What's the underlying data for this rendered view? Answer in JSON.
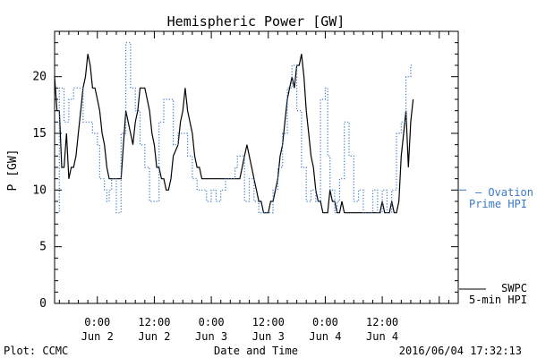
{
  "chart_data": {
    "type": "line",
    "title": "Hemispheric Power [GW]",
    "xlabel": "Date and Time",
    "ylabel": "P [GW]",
    "ylim": [
      0,
      24
    ],
    "xlim": [
      -9,
      76
    ],
    "y_ticks": [
      0,
      5,
      10,
      15,
      20
    ],
    "x_ticks": [
      {
        "x": 0,
        "line1": "0:00",
        "line2": "Jun 2"
      },
      {
        "x": 12,
        "line1": "12:00",
        "line2": "Jun 2"
      },
      {
        "x": 24,
        "line1": "0:00",
        "line2": "Jun 3"
      },
      {
        "x": 36,
        "line1": "12:00",
        "line2": "Jun 3"
      },
      {
        "x": 48,
        "line1": "0:00",
        "line2": "Jun 4"
      },
      {
        "x": 60,
        "line1": "12:00",
        "line2": "Jun 4"
      }
    ],
    "series": [
      {
        "name_line1": "SWPC",
        "name_line2": "5-min HPI",
        "color": "#000000",
        "style": "solid",
        "points": [
          [
            -9,
            20
          ],
          [
            -8.5,
            17
          ],
          [
            -8,
            17
          ],
          [
            -7.5,
            12
          ],
          [
            -7,
            12
          ],
          [
            -6.5,
            15
          ],
          [
            -6,
            11
          ],
          [
            -5.5,
            12
          ],
          [
            -5,
            12
          ],
          [
            -4.5,
            13
          ],
          [
            -4,
            15
          ],
          [
            -3.5,
            17
          ],
          [
            -3,
            19
          ],
          [
            -2.5,
            20
          ],
          [
            -2,
            22
          ],
          [
            -1.5,
            21
          ],
          [
            -1,
            19
          ],
          [
            -0.5,
            19
          ],
          [
            0,
            18
          ],
          [
            0.5,
            17
          ],
          [
            1,
            15
          ],
          [
            1.5,
            14
          ],
          [
            2,
            12
          ],
          [
            2.5,
            11
          ],
          [
            3,
            11
          ],
          [
            4,
            11
          ],
          [
            5,
            11
          ],
          [
            5.5,
            14
          ],
          [
            6,
            17
          ],
          [
            6.5,
            16
          ],
          [
            7,
            15
          ],
          [
            7.5,
            14
          ],
          [
            8,
            16
          ],
          [
            8.5,
            17
          ],
          [
            9,
            19
          ],
          [
            10,
            19
          ],
          [
            10.5,
            18
          ],
          [
            11,
            17
          ],
          [
            11.5,
            15
          ],
          [
            12,
            14
          ],
          [
            12.5,
            12
          ],
          [
            13,
            12
          ],
          [
            13.5,
            11
          ],
          [
            14,
            11
          ],
          [
            14.5,
            10
          ],
          [
            15,
            10
          ],
          [
            15.5,
            11
          ],
          [
            16,
            13
          ],
          [
            17,
            14
          ],
          [
            17.5,
            16
          ],
          [
            18,
            17
          ],
          [
            18.5,
            19
          ],
          [
            19,
            17
          ],
          [
            19.5,
            16
          ],
          [
            20,
            15
          ],
          [
            20.5,
            13
          ],
          [
            21,
            12
          ],
          [
            21.5,
            12
          ],
          [
            22,
            11
          ],
          [
            23,
            11
          ],
          [
            24,
            11
          ],
          [
            25,
            11
          ],
          [
            26,
            11
          ],
          [
            27,
            11
          ],
          [
            28,
            11
          ],
          [
            29,
            11
          ],
          [
            30,
            11
          ],
          [
            30.5,
            12
          ],
          [
            31,
            13
          ],
          [
            31.5,
            14
          ],
          [
            32,
            13
          ],
          [
            32.5,
            12
          ],
          [
            33,
            11
          ],
          [
            33.5,
            10
          ],
          [
            34,
            9
          ],
          [
            34.5,
            9
          ],
          [
            35,
            8
          ],
          [
            35.5,
            8
          ],
          [
            36,
            8
          ],
          [
            36.5,
            9
          ],
          [
            37,
            9
          ],
          [
            37.5,
            10
          ],
          [
            38,
            11
          ],
          [
            38.5,
            13
          ],
          [
            39,
            14
          ],
          [
            39.5,
            16
          ],
          [
            40,
            18
          ],
          [
            40.5,
            19
          ],
          [
            41,
            20
          ],
          [
            41.5,
            19
          ],
          [
            42,
            21
          ],
          [
            42.5,
            21
          ],
          [
            43,
            22
          ],
          [
            43.5,
            20
          ],
          [
            44,
            17
          ],
          [
            44.5,
            15
          ],
          [
            45,
            13
          ],
          [
            45.5,
            12
          ],
          [
            46,
            10
          ],
          [
            46.5,
            9
          ],
          [
            47,
            9
          ],
          [
            47.5,
            8
          ],
          [
            48,
            8
          ],
          [
            48.5,
            8
          ],
          [
            49,
            10
          ],
          [
            49.5,
            9
          ],
          [
            50,
            9
          ],
          [
            50.5,
            8
          ],
          [
            51,
            8
          ],
          [
            51.5,
            9
          ],
          [
            52,
            8
          ],
          [
            52.5,
            8
          ],
          [
            53,
            8
          ],
          [
            54,
            8
          ],
          [
            55,
            8
          ],
          [
            56,
            8
          ],
          [
            57,
            8
          ],
          [
            58,
            8
          ],
          [
            59,
            8
          ],
          [
            59.5,
            8
          ],
          [
            60,
            9
          ],
          [
            60.5,
            8
          ],
          [
            61,
            8
          ],
          [
            61.5,
            8
          ],
          [
            62,
            9
          ],
          [
            62.5,
            8
          ],
          [
            63,
            8
          ],
          [
            63.5,
            9
          ],
          [
            64,
            13
          ],
          [
            64.5,
            15
          ],
          [
            65,
            17
          ],
          [
            65.5,
            12
          ],
          [
            66,
            16
          ],
          [
            66.5,
            18
          ]
        ]
      },
      {
        "name_line1": "— Ovation",
        "name_line2": "Prime HPI",
        "color": "#3a78c8",
        "style": "dotted",
        "points": [
          [
            -9,
            8
          ],
          [
            -8,
            8
          ],
          [
            -8,
            19
          ],
          [
            -7,
            19
          ],
          [
            -7,
            16
          ],
          [
            -6,
            16
          ],
          [
            -6,
            18
          ],
          [
            -5,
            18
          ],
          [
            -5,
            19
          ],
          [
            -3,
            19
          ],
          [
            -3,
            16
          ],
          [
            -1,
            16
          ],
          [
            -1,
            15
          ],
          [
            0,
            15
          ],
          [
            0,
            14
          ],
          [
            0.5,
            14
          ],
          [
            0.5,
            11
          ],
          [
            1.5,
            11
          ],
          [
            1.5,
            10
          ],
          [
            2,
            10
          ],
          [
            2,
            9
          ],
          [
            2.5,
            9
          ],
          [
            2.5,
            10
          ],
          [
            3,
            10
          ],
          [
            3,
            11
          ],
          [
            4,
            11
          ],
          [
            4,
            8
          ],
          [
            5,
            8
          ],
          [
            5,
            15
          ],
          [
            6,
            15
          ],
          [
            6,
            23
          ],
          [
            7,
            23
          ],
          [
            7,
            19
          ],
          [
            8,
            19
          ],
          [
            8,
            17
          ],
          [
            9,
            17
          ],
          [
            9,
            14
          ],
          [
            10,
            14
          ],
          [
            10,
            12
          ],
          [
            11,
            12
          ],
          [
            11,
            9
          ],
          [
            13,
            9
          ],
          [
            13,
            16
          ],
          [
            14,
            16
          ],
          [
            14,
            18
          ],
          [
            16,
            18
          ],
          [
            16,
            14
          ],
          [
            17,
            14
          ],
          [
            17,
            15
          ],
          [
            19,
            15
          ],
          [
            19,
            13
          ],
          [
            20,
            13
          ],
          [
            20,
            11
          ],
          [
            21,
            11
          ],
          [
            21,
            10
          ],
          [
            23,
            10
          ],
          [
            23,
            9
          ],
          [
            24,
            9
          ],
          [
            24,
            10
          ],
          [
            25,
            10
          ],
          [
            25,
            9
          ],
          [
            26,
            9
          ],
          [
            26,
            10
          ],
          [
            27,
            10
          ],
          [
            27,
            11
          ],
          [
            29,
            11
          ],
          [
            29,
            12
          ],
          [
            29.5,
            12
          ],
          [
            29.5,
            13
          ],
          [
            31,
            13
          ],
          [
            31,
            9
          ],
          [
            32,
            9
          ],
          [
            32,
            11
          ],
          [
            33,
            11
          ],
          [
            33,
            9
          ],
          [
            34,
            9
          ],
          [
            34,
            8
          ],
          [
            37,
            8
          ],
          [
            37,
            10
          ],
          [
            38,
            10
          ],
          [
            38,
            12
          ],
          [
            39,
            12
          ],
          [
            39,
            15
          ],
          [
            40,
            15
          ],
          [
            40,
            19
          ],
          [
            41,
            19
          ],
          [
            41,
            21
          ],
          [
            42,
            21
          ],
          [
            42,
            17
          ],
          [
            43,
            17
          ],
          [
            43,
            12
          ],
          [
            44,
            12
          ],
          [
            44,
            9
          ],
          [
            45,
            9
          ],
          [
            45,
            10
          ],
          [
            46,
            10
          ],
          [
            46,
            9
          ],
          [
            47,
            9
          ],
          [
            47,
            18
          ],
          [
            48,
            18
          ],
          [
            48,
            19
          ],
          [
            48.5,
            19
          ],
          [
            48.5,
            13
          ],
          [
            49,
            13
          ],
          [
            49,
            10
          ],
          [
            50,
            10
          ],
          [
            50,
            8
          ],
          [
            50.5,
            8
          ],
          [
            50.5,
            9
          ],
          [
            51,
            9
          ],
          [
            51,
            11
          ],
          [
            52,
            11
          ],
          [
            52,
            16
          ],
          [
            53,
            16
          ],
          [
            53,
            13
          ],
          [
            54,
            13
          ],
          [
            54,
            9
          ],
          [
            55,
            9
          ],
          [
            55,
            10
          ],
          [
            56,
            10
          ],
          [
            56,
            8
          ],
          [
            58,
            8
          ],
          [
            58,
            10
          ],
          [
            59,
            10
          ],
          [
            59,
            8
          ],
          [
            60,
            8
          ],
          [
            60,
            10
          ],
          [
            61,
            10
          ],
          [
            61,
            8
          ],
          [
            62,
            8
          ],
          [
            62,
            10
          ],
          [
            63,
            10
          ],
          [
            63,
            15
          ],
          [
            64,
            15
          ],
          [
            64,
            16
          ],
          [
            65,
            16
          ],
          [
            65,
            20
          ],
          [
            66,
            20
          ],
          [
            66,
            21
          ],
          [
            66.5,
            21
          ]
        ]
      }
    ]
  },
  "footer": {
    "left": "Plot: CCMC",
    "right": "2016/06/04 17:32:13"
  }
}
